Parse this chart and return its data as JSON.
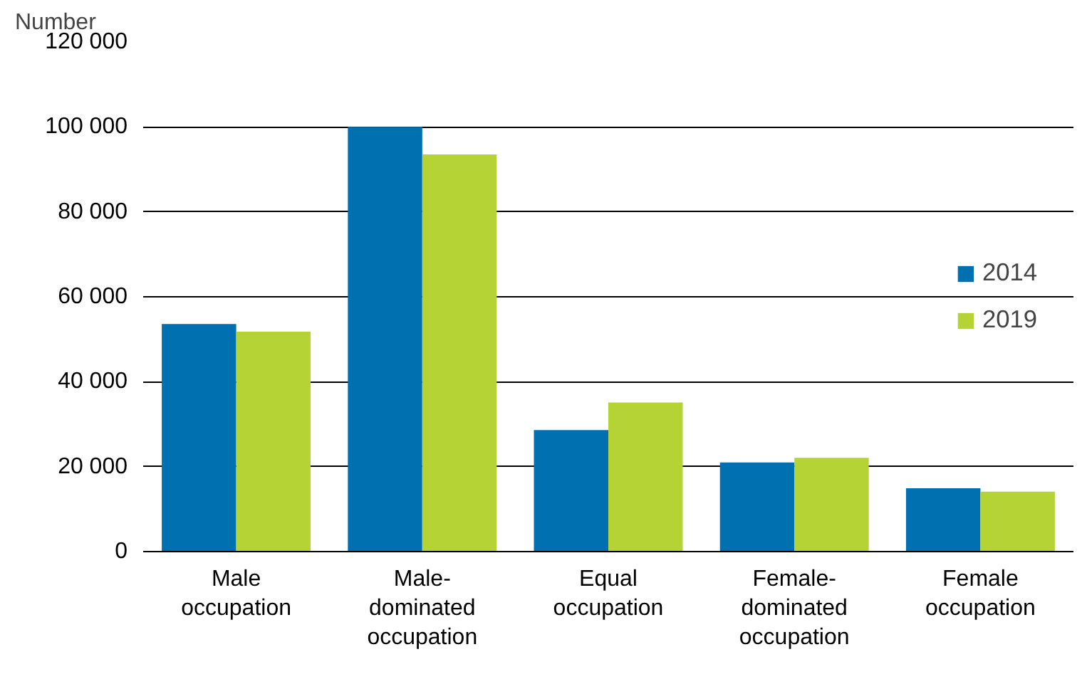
{
  "chart_data": {
    "type": "bar",
    "ylabel": "Number",
    "categories": [
      "Male\noccupation",
      "Male-\ndominated\noccupation",
      "Equal\noccupation",
      "Female-\ndominated\noccupation",
      "Female\noccupation"
    ],
    "series": [
      {
        "name": "2014",
        "color": "#0070b0",
        "values": [
          53600,
          100000,
          28600,
          21000,
          14900
        ]
      },
      {
        "name": "2019",
        "color": "#b5d334",
        "values": [
          51800,
          93500,
          35100,
          22100,
          14100
        ]
      }
    ],
    "ylim": [
      0,
      120000
    ],
    "yticks": [
      {
        "value": 0,
        "label": "0"
      },
      {
        "value": 20000,
        "label": "20 000"
      },
      {
        "value": 40000,
        "label": "40 000"
      },
      {
        "value": 60000,
        "label": "60 000"
      },
      {
        "value": 80000,
        "label": "80 000"
      },
      {
        "value": 100000,
        "label": "100 000"
      },
      {
        "value": 120000,
        "label": "120 000"
      }
    ],
    "grid": "y",
    "legend": "right"
  }
}
